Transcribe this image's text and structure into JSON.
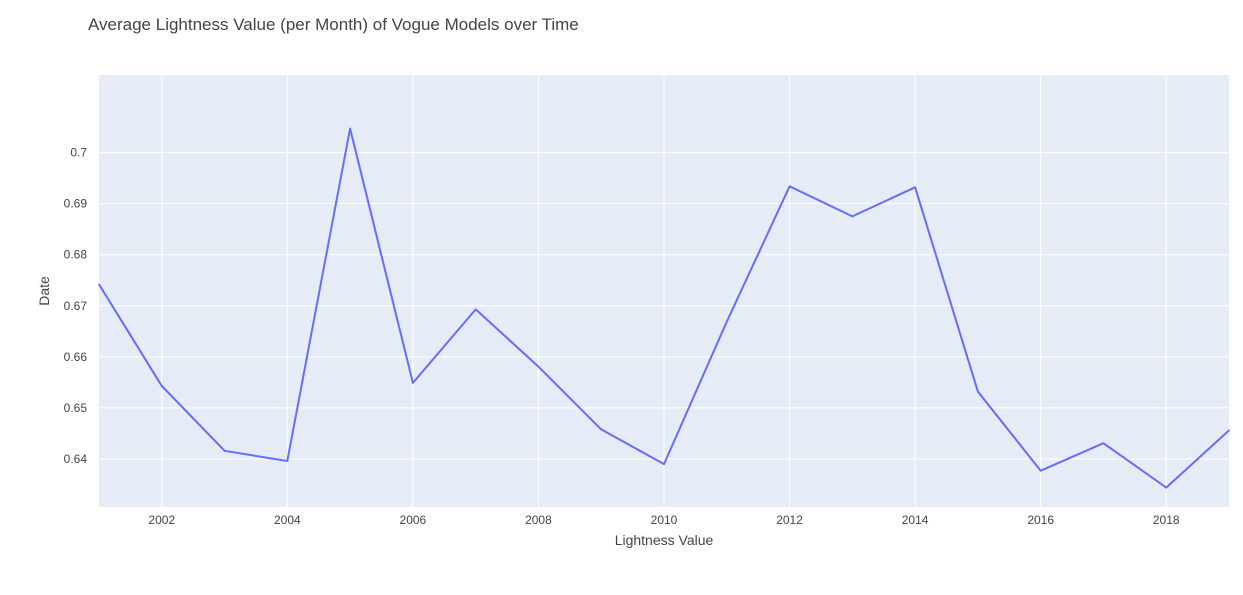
{
  "chart_data": {
    "type": "line",
    "title": "Average Lightness Value (per Month) of Vogue Models over Time",
    "xlabel": "Lightness Value",
    "ylabel": "Date",
    "x": [
      2001,
      2002,
      2003,
      2004,
      2005,
      2006,
      2007,
      2008,
      2009,
      2010,
      2011,
      2012,
      2013,
      2014,
      2015,
      2016,
      2017,
      2018,
      2019
    ],
    "series": [
      {
        "values": [
          0.6742,
          0.6543,
          0.6416,
          0.6396,
          0.7047,
          0.6549,
          0.6693,
          0.6581,
          0.6458,
          0.639,
          0.6669,
          0.6934,
          0.6875,
          0.6932,
          0.6532,
          0.6377,
          0.6431,
          0.6344,
          0.6456
        ]
      }
    ],
    "xlim": [
      2001,
      2019
    ],
    "ylim": [
      0.6306,
      0.7152
    ],
    "xticks": [
      2002,
      2004,
      2006,
      2008,
      2010,
      2012,
      2014,
      2016,
      2018
    ],
    "xtick_labels": [
      "2002",
      "2004",
      "2006",
      "2008",
      "2010",
      "2012",
      "2014",
      "2016",
      "2018"
    ],
    "yticks": [
      0.64,
      0.65,
      0.66,
      0.67,
      0.68,
      0.69,
      0.7
    ],
    "ytick_labels": [
      "0.64",
      "0.65",
      "0.66",
      "0.67",
      "0.68",
      "0.69",
      "0.7"
    ],
    "grid": true,
    "colors": {
      "plot_background": "#e5ecf6",
      "grid": "#ffffff",
      "line": "#636efa"
    }
  }
}
